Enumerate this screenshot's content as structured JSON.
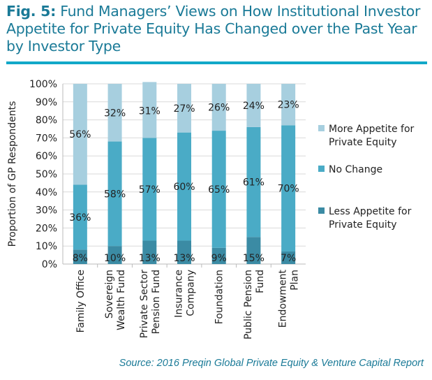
{
  "title_prefix": "Fig. 5:",
  "title": "Fund Managers’ Views on How Institutional Investor Appetite for Private Equity Has Changed over the Past Year by Investor Type",
  "source": "Source: 2016 Preqin Global Private Equity & Venture Capital Report",
  "chart_data": {
    "type": "bar",
    "stacked": true,
    "ylabel": "Proportion of GP Respondents",
    "xlabel": "",
    "ylim": [
      0,
      100
    ],
    "yticks": [
      "0%",
      "10%",
      "20%",
      "30%",
      "40%",
      "50%",
      "60%",
      "70%",
      "80%",
      "90%",
      "100%"
    ],
    "grid": true,
    "legend_position": "right",
    "categories": [
      [
        "Family Office"
      ],
      [
        "Sovereign",
        "Wealth Fund"
      ],
      [
        "Private Sector",
        "Pension Fund"
      ],
      [
        "Insurance",
        "Company"
      ],
      [
        "Foundation"
      ],
      [
        "Public Pension",
        "Fund"
      ],
      [
        "Endowment",
        "Plan"
      ]
    ],
    "series": [
      {
        "name": "Less Appetite for Private Equity",
        "legend_lines": [
          "Less Appetite for",
          "Private Equity"
        ],
        "color": "#3b8ba4",
        "values": [
          8,
          10,
          13,
          13,
          9,
          15,
          7
        ]
      },
      {
        "name": "No Change",
        "legend_lines": [
          "No Change"
        ],
        "color": "#4aabc6",
        "values": [
          36,
          58,
          57,
          60,
          65,
          61,
          70
        ]
      },
      {
        "name": "More Appetite for Private Equity",
        "legend_lines": [
          "More Appetite for",
          "Private Equity"
        ],
        "color": "#a7cfdf",
        "values": [
          56,
          32,
          31,
          27,
          26,
          24,
          23
        ]
      }
    ]
  }
}
